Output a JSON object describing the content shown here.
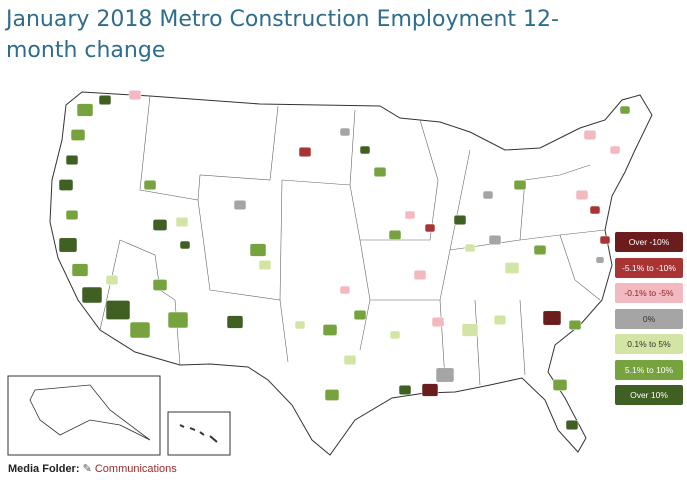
{
  "header": {
    "title": "January 2018 Metro Construction Employment 12-month change"
  },
  "map": {
    "legend": [
      {
        "label": "Over -10%",
        "color": "#6b1c1c"
      },
      {
        "label": "-5.1% to -10%",
        "color": "#a83434"
      },
      {
        "label": "-0.1% to -5%",
        "color": "#f2b9c0"
      },
      {
        "label": "0%",
        "color": "#a5a5a5"
      },
      {
        "label": "0.1% to 5%",
        "color": "#d3e5a4"
      },
      {
        "label": "5.1% to 10%",
        "color": "#77a33f"
      },
      {
        "label": "Over 10%",
        "color": "#3f5f23"
      }
    ]
  },
  "footer": {
    "label": "Media Folder:",
    "link": "Communications"
  }
}
